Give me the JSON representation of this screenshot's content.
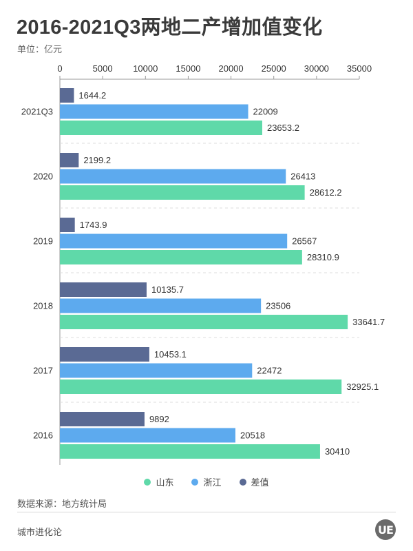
{
  "header": {
    "title": "2016-2021Q3两地二产增加值变化",
    "unit": "单位：亿元"
  },
  "colors": {
    "shandong": "#5fd9a9",
    "zhejiang": "#5daaee",
    "diff": "#5a6a94",
    "axis": "#999999",
    "label": "#333333"
  },
  "chart_data": {
    "type": "bar",
    "orientation": "horizontal",
    "categories": [
      "2021Q3",
      "2020",
      "2019",
      "2018",
      "2017",
      "2016"
    ],
    "series": [
      {
        "name": "差值",
        "values": [
          1644.2,
          2199.2,
          1743.9,
          10135.7,
          10453.1,
          9892
        ],
        "labels": [
          "1644.2",
          "2199.2",
          "1743.9",
          "10135.7",
          "10453.1",
          "9892"
        ]
      },
      {
        "name": "浙江",
        "values": [
          22009,
          26413,
          26567,
          23506,
          22472,
          20518
        ],
        "labels": [
          "22009",
          "26413",
          "26567",
          "23506",
          "22472",
          "20518"
        ]
      },
      {
        "name": "山东",
        "values": [
          23653.2,
          28612.2,
          28310.9,
          33641.7,
          32925.1,
          30410
        ],
        "labels": [
          "23653.2",
          "28612.2",
          "28310.9",
          "33641.7",
          "32925.1",
          "30410"
        ]
      }
    ],
    "xlim": [
      0,
      35000
    ],
    "xticks": [
      "0",
      "5000",
      "10000",
      "15000",
      "20000",
      "25000",
      "30000",
      "35000"
    ],
    "xaxis_position": "top",
    "legend_position": "bottom-center"
  },
  "legend": {
    "items": [
      {
        "label": "山东",
        "color": "#5fd9a9"
      },
      {
        "label": "浙江",
        "color": "#5daaee"
      },
      {
        "label": "差值",
        "color": "#5a6a94"
      }
    ]
  },
  "footer": {
    "source": "数据来源：地方统计局",
    "brand": "城市进化论",
    "logo_text": "UE"
  }
}
